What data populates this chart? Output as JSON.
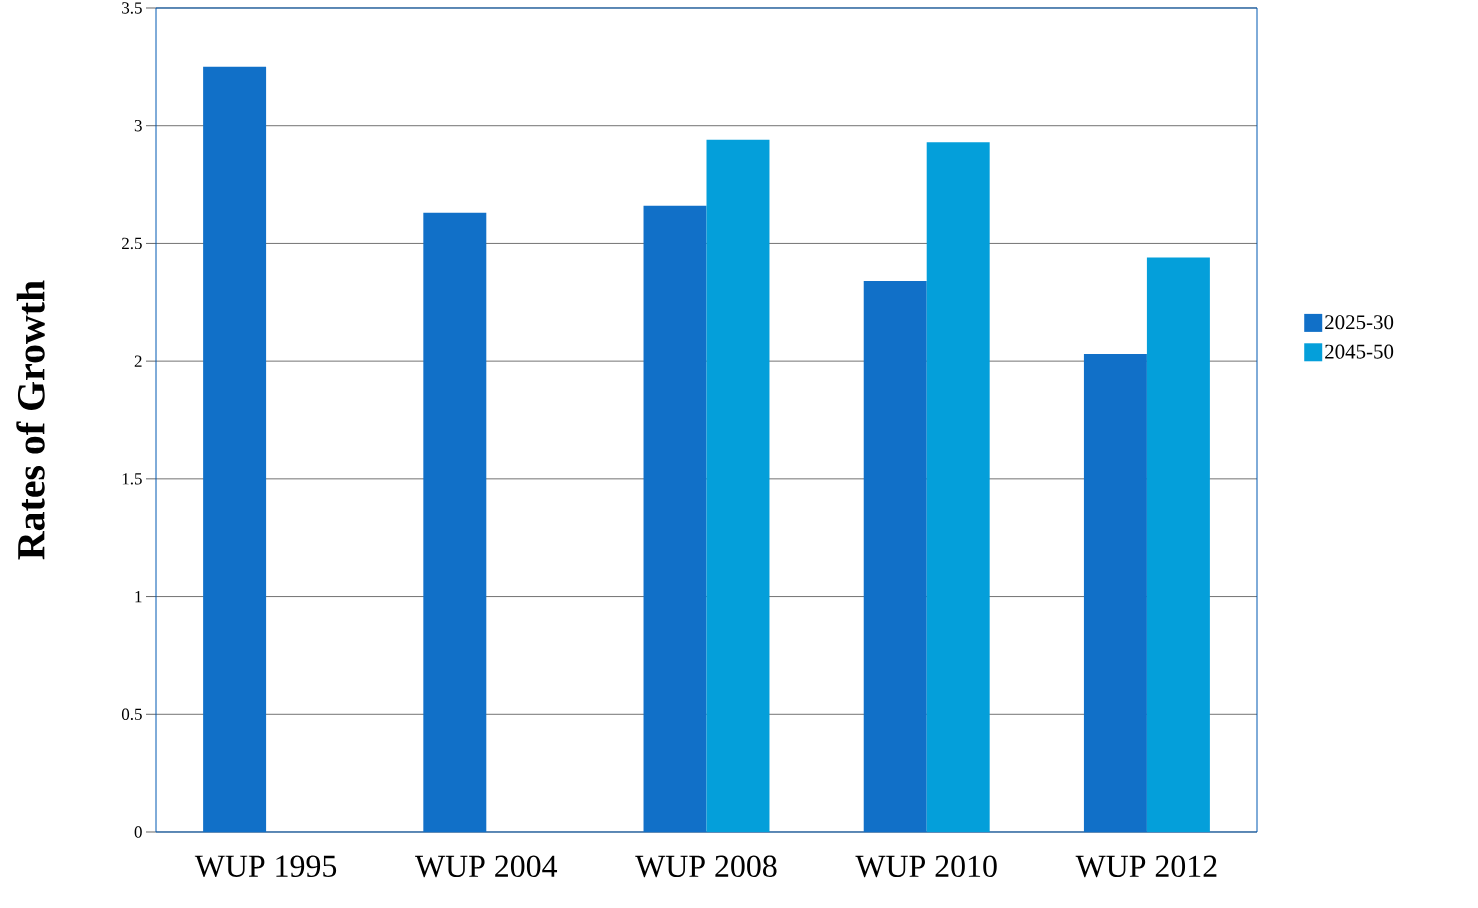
{
  "chart_data": {
    "type": "bar",
    "ylabel": "Rates of Growth",
    "categories": [
      "WUP 1995",
      "WUP 2004",
      "WUP 2008",
      "WUP 2010",
      "WUP 2012"
    ],
    "series": [
      {
        "name": "2025-30",
        "color": "#1170c8",
        "values": [
          3.25,
          2.63,
          2.66,
          2.34,
          2.03
        ]
      },
      {
        "name": "2045-50",
        "color": "#049fda",
        "values": [
          null,
          null,
          2.94,
          2.93,
          2.44
        ]
      }
    ],
    "ylim": [
      0,
      3.5
    ],
    "yticks": [
      0,
      0.5,
      1,
      1.5,
      2,
      2.5,
      3,
      3.5
    ],
    "grid": "y",
    "legend": "right"
  }
}
